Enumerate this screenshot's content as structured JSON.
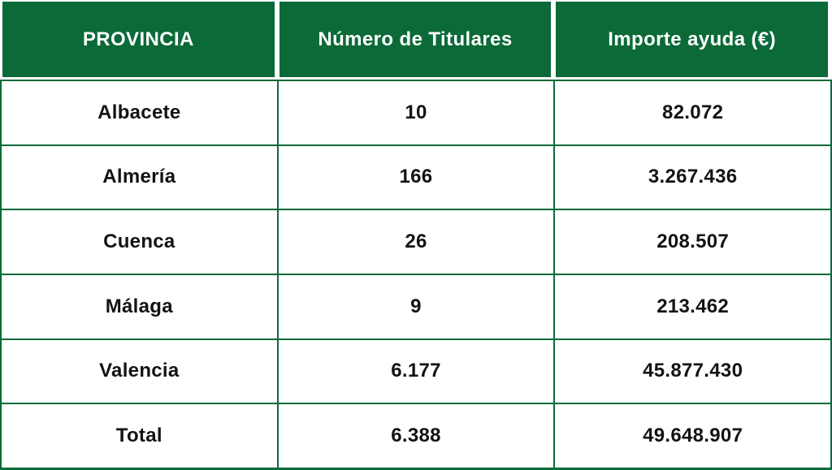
{
  "colors": {
    "header_bg": "#0B6A38",
    "grid_border": "#0B6A38",
    "header_text": "#FFFFFF",
    "body_text": "#131313",
    "cell_bg": "#FFFFFF"
  },
  "table": {
    "columns": [
      {
        "label": "PROVINCIA"
      },
      {
        "label": "Número de Titulares"
      },
      {
        "label": "Importe ayuda (€)"
      }
    ],
    "rows": [
      [
        "Albacete",
        "10",
        "82.072"
      ],
      [
        "Almería",
        "166",
        "3.267.436"
      ],
      [
        "Cuenca",
        "26",
        "208.507"
      ],
      [
        "Málaga",
        "9",
        "213.462"
      ],
      [
        "Valencia",
        "6.177",
        "45.877.430"
      ],
      [
        "Total",
        "6.388",
        "49.648.907"
      ]
    ]
  },
  "chart_data": {
    "type": "table",
    "title": "",
    "columns": [
      "PROVINCIA",
      "Número de Titulares",
      "Importe ayuda (€)"
    ],
    "rows": [
      {
        "provincia": "Albacete",
        "titulares": 10,
        "importe_eur": 82072
      },
      {
        "provincia": "Almería",
        "titulares": 166,
        "importe_eur": 3267436
      },
      {
        "provincia": "Cuenca",
        "titulares": 26,
        "importe_eur": 208507
      },
      {
        "provincia": "Málaga",
        "titulares": 9,
        "importe_eur": 213462
      },
      {
        "provincia": "Valencia",
        "titulares": 6177,
        "importe_eur": 45877430
      },
      {
        "provincia": "Total",
        "titulares": 6388,
        "importe_eur": 49648907
      }
    ],
    "number_format": "es-ES (dot thousands separator)",
    "layout": {
      "header_position": "top",
      "grid": true,
      "column_widths": "equal thirds"
    }
  }
}
